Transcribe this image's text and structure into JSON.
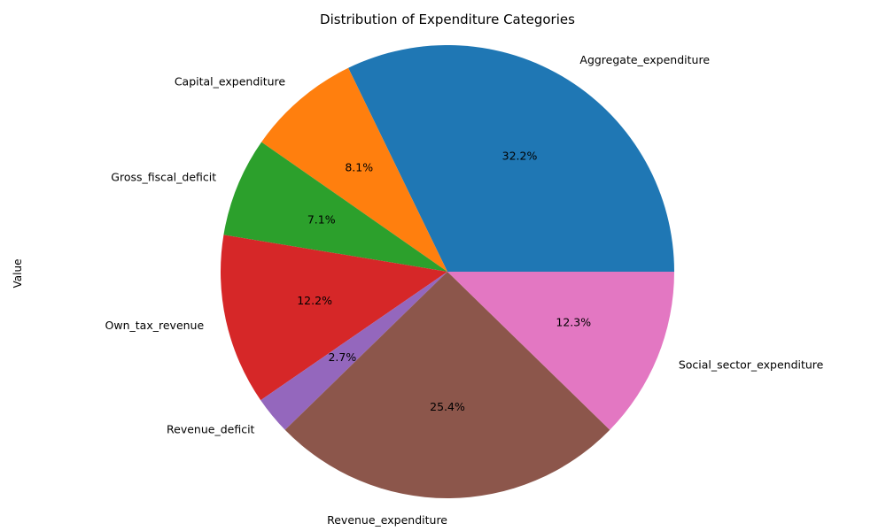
{
  "chart_data": {
    "type": "pie",
    "title": "Distribution of Expenditure Categories",
    "ylabel": "Value",
    "xlabel": "",
    "start_angle_deg": 0,
    "direction": "counterclockwise",
    "slices": [
      {
        "label": "Aggregate_expenditure",
        "percent": 32.2,
        "pct_text": "32.2%",
        "color": "#1f77b4"
      },
      {
        "label": "Capital_expenditure",
        "percent": 8.1,
        "pct_text": "8.1%",
        "color": "#ff7f0e"
      },
      {
        "label": "Gross_fiscal_deficit",
        "percent": 7.1,
        "pct_text": "7.1%",
        "color": "#2ca02c"
      },
      {
        "label": "Own_tax_revenue",
        "percent": 12.2,
        "pct_text": "12.2%",
        "color": "#d62728"
      },
      {
        "label": "Revenue_deficit",
        "percent": 2.7,
        "pct_text": "2.7%",
        "color": "#9467bd"
      },
      {
        "label": "Revenue_expenditure",
        "percent": 25.4,
        "pct_text": "25.4%",
        "color": "#8c564b"
      },
      {
        "label": "Social_sector_expenditure",
        "percent": 12.3,
        "pct_text": "12.3%",
        "color": "#e377c2"
      }
    ]
  }
}
